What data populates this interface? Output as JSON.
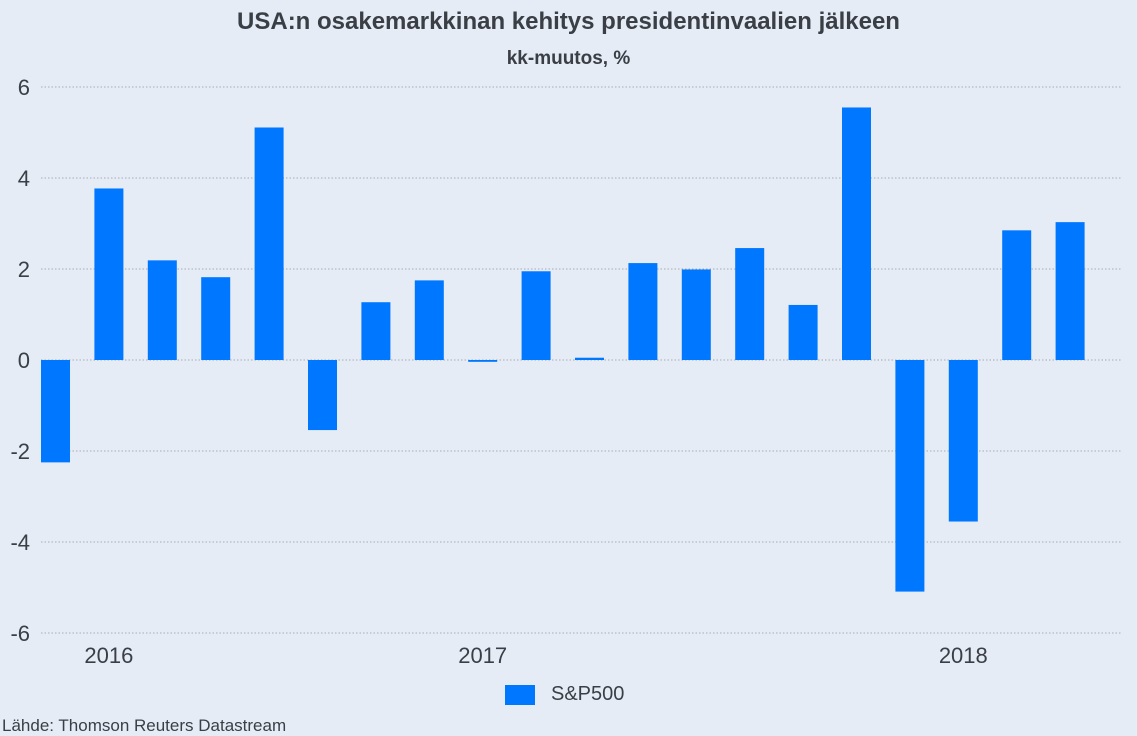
{
  "chart_data": {
    "type": "bar",
    "title": "USA:n osakemarkkinan kehitys presidentinvaalien jälkeen",
    "subtitle": "kk-muutos, %",
    "xlabel": "",
    "ylabel": "",
    "ylim": [
      -6,
      6
    ],
    "yticks": [
      6,
      4,
      2,
      0,
      -2,
      -4,
      -6
    ],
    "grid": true,
    "x_tick_labels": [
      {
        "label": "2016",
        "at_index": 1
      },
      {
        "label": "2017",
        "at_index": 8
      },
      {
        "label": "2018",
        "at_index": 17
      }
    ],
    "categories": [
      "1",
      "2",
      "3",
      "4",
      "5",
      "6",
      "7",
      "8",
      "9",
      "10",
      "11",
      "12",
      "13",
      "14",
      "15",
      "16",
      "17",
      "18",
      "19",
      "20"
    ],
    "series": [
      {
        "name": "S&P500",
        "color": "#0077ff",
        "values": [
          -2.25,
          3.77,
          2.19,
          1.82,
          5.11,
          -1.54,
          1.27,
          1.75,
          -0.04,
          1.95,
          0.05,
          2.13,
          1.99,
          2.46,
          1.21,
          5.55,
          -5.09,
          -3.55,
          2.85,
          3.03
        ]
      }
    ],
    "legend": {
      "position": "bottom",
      "entries": [
        "S&P500"
      ]
    }
  },
  "source": "Lähde: Thomson Reuters Datastream",
  "colors": {
    "background": "#e5ecf6",
    "bar": "#0077ff",
    "text": "#3a3f45",
    "grid": "#a9adb3"
  }
}
